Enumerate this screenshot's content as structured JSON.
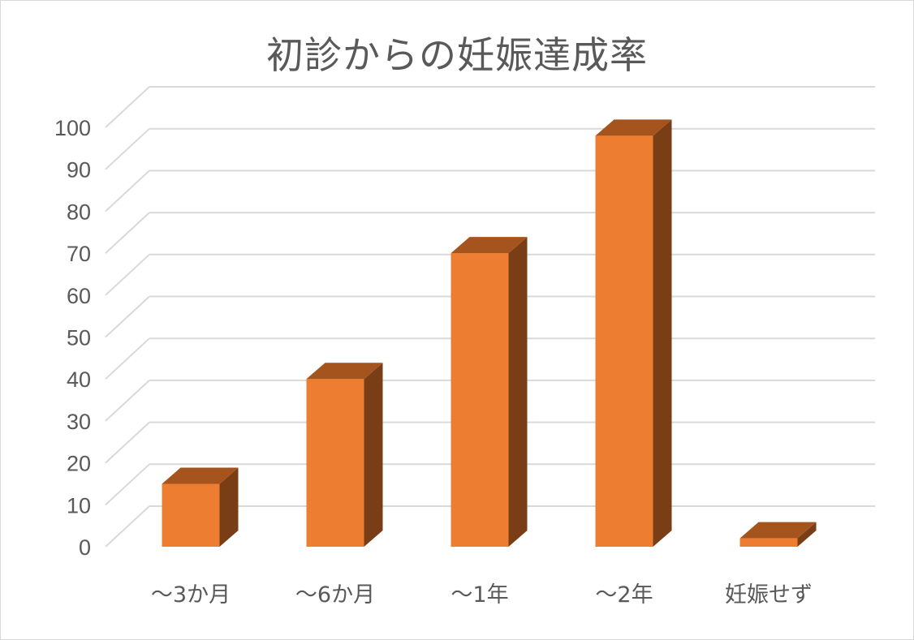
{
  "chart_data": {
    "type": "bar",
    "title": "初診からの妊娠達成率",
    "categories": [
      "～3か月",
      "～6か月",
      "～1年",
      "～2年",
      "妊娠せず"
    ],
    "values": [
      15,
      40,
      70,
      98,
      2
    ],
    "ylim": [
      0,
      100
    ],
    "yticks": [
      0,
      10,
      20,
      30,
      40,
      50,
      60,
      70,
      80,
      90,
      100
    ],
    "grid": true,
    "legend": "none",
    "style": "3d-column",
    "colors": {
      "front": "#ed7d31",
      "top": "#a5541e",
      "side": "#7a3e17",
      "grid": "#d9d9d9",
      "text": "#595959"
    }
  }
}
